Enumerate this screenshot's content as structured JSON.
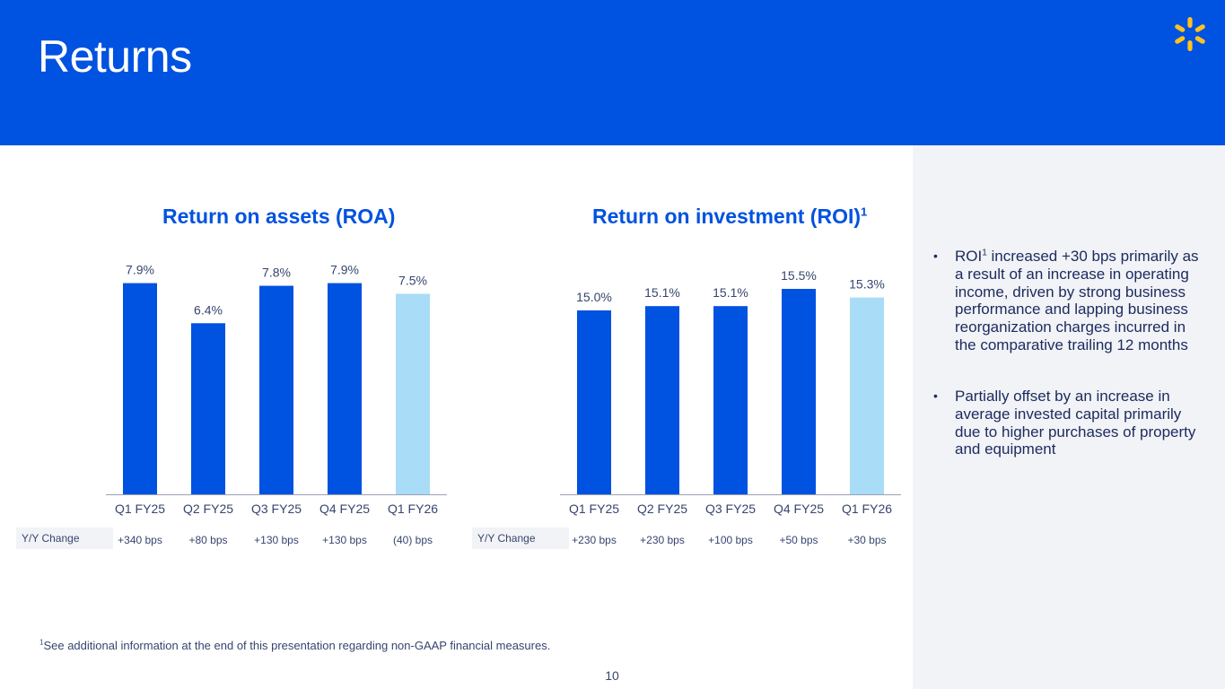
{
  "header": {
    "title": "Returns"
  },
  "colors": {
    "primary": "#0052e0",
    "highlight": "#a9dcf6",
    "text": "#1d2c60",
    "brand_spark": "#ffc220"
  },
  "icons": {
    "brand": "spark-icon"
  },
  "chart_data": [
    {
      "type": "bar",
      "title": "Return on assets (ROA)",
      "title_superscript": "",
      "categories": [
        "Q1 FY25",
        "Q2 FY25",
        "Q3 FY25",
        "Q4 FY25",
        "Q1 FY26"
      ],
      "values": [
        7.9,
        6.4,
        7.8,
        7.9,
        7.5
      ],
      "value_labels": [
        "7.9%",
        "6.4%",
        "7.8%",
        "7.9%",
        "7.5%"
      ],
      "highlight_index": 4,
      "yoy_label": "Y/Y Change",
      "yoy": [
        "+340 bps",
        "+80 bps",
        "+130 bps",
        "+130 bps",
        "(40) bps"
      ],
      "ylim": [
        0,
        9
      ]
    },
    {
      "type": "bar",
      "title": "Return on investment (ROI)",
      "title_superscript": "1",
      "categories": [
        "Q1 FY25",
        "Q2 FY25",
        "Q3 FY25",
        "Q4 FY25",
        "Q1 FY26"
      ],
      "values": [
        15.0,
        15.1,
        15.1,
        15.5,
        15.3
      ],
      "value_labels": [
        "15.0%",
        "15.1%",
        "15.1%",
        "15.5%",
        "15.3%"
      ],
      "highlight_index": 4,
      "yoy_label": "Y/Y Change",
      "yoy": [
        "+230 bps",
        "+230 bps",
        "+100 bps",
        "+50 bps",
        "+30 bps"
      ],
      "ylim": [
        0,
        16
      ]
    }
  ],
  "side_panel": {
    "bullets": [
      {
        "pre": "ROI",
        "sup": "1",
        "post": " increased +30 bps primarily as a result of an increase in operating income, driven by strong business performance and lapping business reorganization charges incurred in the comparative trailing 12 months"
      },
      {
        "pre": "Partially offset by an increase in average invested capital primarily due to higher purchases of property and equipment",
        "sup": "",
        "post": ""
      }
    ]
  },
  "footnote": {
    "marker": "1",
    "text": "See additional information at the end of this presentation regarding non-GAAP financial measures."
  },
  "page_number": "10"
}
